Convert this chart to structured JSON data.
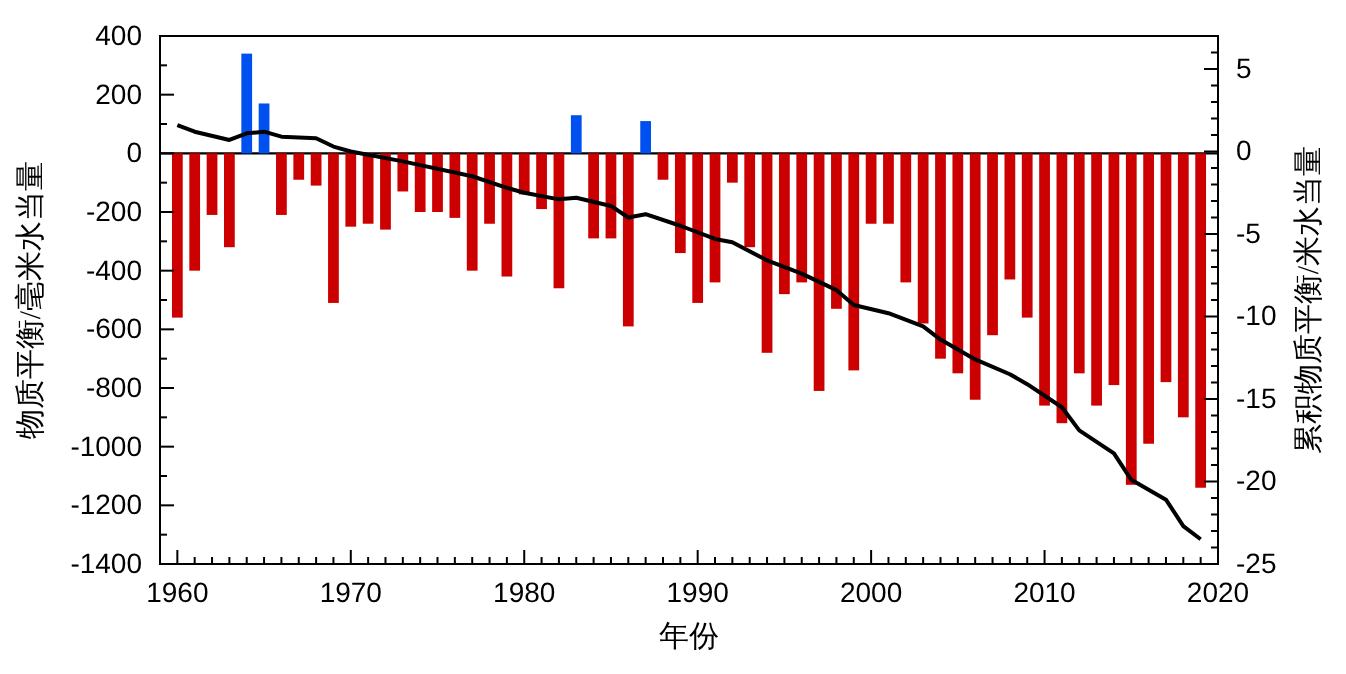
{
  "chart_data": {
    "type": "bar",
    "xlabel": "年份",
    "ylabel": "物质平衡/毫米水当量",
    "y2label": "累积物质平衡/米水当量",
    "x": [
      1960,
      1961,
      1962,
      1963,
      1964,
      1965,
      1966,
      1967,
      1968,
      1969,
      1970,
      1971,
      1972,
      1973,
      1974,
      1975,
      1976,
      1977,
      1978,
      1979,
      1980,
      1981,
      1982,
      1983,
      1984,
      1985,
      1986,
      1987,
      1988,
      1989,
      1990,
      1991,
      1992,
      1993,
      1994,
      1995,
      1996,
      1997,
      1998,
      1999,
      2000,
      2001,
      2002,
      2003,
      2004,
      2005,
      2006,
      2007,
      2008,
      2009,
      2010,
      2011,
      2012,
      2013,
      2014,
      2015,
      2016,
      2017,
      2018,
      2019
    ],
    "series": [
      {
        "values": [
          -560,
          -400,
          -210,
          -320,
          340,
          170,
          -210,
          -90,
          -110,
          -510,
          -250,
          -240,
          -260,
          -130,
          -200,
          -200,
          -220,
          -400,
          -240,
          -420,
          -140,
          -190,
          -460,
          130,
          -290,
          -290,
          -590,
          110,
          -90,
          -340,
          -510,
          -440,
          -100,
          -320,
          -680,
          -480,
          -440,
          -810,
          -530,
          -740,
          -240,
          -240,
          -440,
          -580,
          -700,
          -750,
          -840,
          -620,
          -430,
          -560,
          -860,
          -920,
          -750,
          -860,
          -790,
          -1130,
          -990,
          -780,
          -900,
          -1140
        ],
        "colors": [
          "#cc0000",
          "#cc0000",
          "#cc0000",
          "#cc0000",
          "#0050f0",
          "#0050f0",
          "#cc0000",
          "#cc0000",
          "#cc0000",
          "#cc0000",
          "#cc0000",
          "#cc0000",
          "#cc0000",
          "#cc0000",
          "#cc0000",
          "#cc0000",
          "#cc0000",
          "#cc0000",
          "#cc0000",
          "#cc0000",
          "#cc0000",
          "#cc0000",
          "#cc0000",
          "#0050f0",
          "#cc0000",
          "#cc0000",
          "#cc0000",
          "#0050f0",
          "#cc0000",
          "#cc0000",
          "#cc0000",
          "#cc0000",
          "#cc0000",
          "#cc0000",
          "#cc0000",
          "#cc0000",
          "#cc0000",
          "#cc0000",
          "#cc0000",
          "#cc0000",
          "#cc0000",
          "#cc0000",
          "#cc0000",
          "#cc0000",
          "#cc0000",
          "#cc0000",
          "#cc0000",
          "#cc0000",
          "#cc0000",
          "#cc0000",
          "#cc0000",
          "#cc0000",
          "#cc0000",
          "#cc0000",
          "#cc0000",
          "#cc0000",
          "#cc0000",
          "#cc0000",
          "#cc0000",
          "#cc0000"
        ]
      },
      {
        "type": "line",
        "axis": "y2",
        "color": "#000000",
        "x": [
          1960,
          1961,
          1963,
          1964,
          1965,
          1966,
          1968,
          1969,
          1970,
          1973,
          1977,
          1979,
          1980,
          1982,
          1983,
          1985,
          1986,
          1987,
          1989,
          1991,
          1992,
          1994,
          1996,
          1998,
          1999,
          2001,
          2003,
          2004,
          2006,
          2008,
          2009,
          2011,
          2012,
          2014,
          2015,
          2017,
          2018,
          2019
        ],
        "values": [
          1.6,
          1.2,
          0.7,
          1.1,
          1.2,
          0.9,
          0.8,
          0.3,
          0,
          -0.6,
          -1.5,
          -2.2,
          -2.5,
          -2.9,
          -2.8,
          -3.3,
          -4.0,
          -3.8,
          -4.5,
          -5.3,
          -5.5,
          -6.6,
          -7.4,
          -8.4,
          -9.3,
          -9.8,
          -10.6,
          -11.4,
          -12.6,
          -13.5,
          -14.1,
          -15.5,
          -16.9,
          -18.3,
          -19.9,
          -21.1,
          -22.7,
          -23.5
        ]
      }
    ],
    "xlim": [
      1959,
      2020
    ],
    "xticks": [
      1960,
      {
        "value": 1961,
        "label": null
      },
      {
        "value": 1962,
        "label": null
      },
      {
        "value": 1963,
        "label": null
      },
      {
        "value": 1964,
        "label": null
      },
      {
        "value": 1965,
        "label": null
      },
      {
        "value": 1966,
        "label": null
      },
      {
        "value": 1967,
        "label": null
      },
      {
        "value": 1968,
        "label": null
      },
      {
        "value": 1969,
        "label": null
      },
      1970,
      {
        "value": 1971,
        "label": null
      },
      {
        "value": 1972,
        "label": null
      },
      {
        "value": 1973,
        "label": null
      },
      {
        "value": 1974,
        "label": null
      },
      {
        "value": 1975,
        "label": null
      },
      {
        "value": 1976,
        "label": null
      },
      {
        "value": 1977,
        "label": null
      },
      {
        "value": 1978,
        "label": null
      },
      {
        "value": 1979,
        "label": null
      },
      1980,
      {
        "value": 1981,
        "label": null
      },
      {
        "value": 1982,
        "label": null
      },
      {
        "value": 1983,
        "label": null
      },
      {
        "value": 1984,
        "label": null
      },
      {
        "value": 1985,
        "label": null
      },
      {
        "value": 1986,
        "label": null
      },
      {
        "value": 1987,
        "label": null
      },
      {
        "value": 1988,
        "label": null
      },
      {
        "value": 1989,
        "label": null
      },
      1990,
      {
        "value": 1991,
        "label": null
      },
      {
        "value": 1992,
        "label": null
      },
      {
        "value": 1993,
        "label": null
      },
      {
        "value": 1994,
        "label": null
      },
      {
        "value": 1995,
        "label": null
      },
      {
        "value": 1996,
        "label": null
      },
      {
        "value": 1997,
        "label": null
      },
      {
        "value": 1998,
        "label": null
      },
      {
        "value": 1999,
        "label": null
      },
      2000,
      {
        "value": 2001,
        "label": null
      },
      {
        "value": 2002,
        "label": null
      },
      {
        "value": 2003,
        "label": null
      },
      {
        "value": 2004,
        "label": null
      },
      {
        "value": 2005,
        "label": null
      },
      {
        "value": 2006,
        "label": null
      },
      {
        "value": 2007,
        "label": null
      },
      {
        "value": 2008,
        "label": null
      },
      {
        "value": 2009,
        "label": null
      },
      2010,
      {
        "value": 2011,
        "label": null
      },
      {
        "value": 2012,
        "label": null
      },
      {
        "value": 2013,
        "label": null
      },
      {
        "value": 2014,
        "label": null
      },
      {
        "value": 2015,
        "label": null
      },
      {
        "value": 2016,
        "label": null
      },
      {
        "value": 2017,
        "label": null
      },
      {
        "value": 2018,
        "label": null
      },
      {
        "value": 2019,
        "label": null
      },
      2020
    ],
    "ylim": [
      -1400,
      400
    ],
    "yticks": [
      -1400,
      {
        "value": -1300,
        "label": null
      },
      -1200,
      {
        "value": -1100,
        "label": null
      },
      -1000,
      {
        "value": -900,
        "label": null
      },
      -800,
      {
        "value": -700,
        "label": null
      },
      -600,
      {
        "value": -500,
        "label": null
      },
      -400,
      {
        "value": -300,
        "label": null
      },
      -200,
      {
        "value": -100,
        "label": null
      },
      0,
      {
        "value": 100,
        "label": null
      },
      200,
      {
        "value": 300,
        "label": null
      },
      400
    ],
    "y2lim": [
      -25,
      7
    ],
    "y2ticks": [
      -25,
      {
        "value": -24,
        "label": null
      },
      {
        "value": -23,
        "label": null
      },
      {
        "value": -22,
        "label": null
      },
      {
        "value": -21,
        "label": null
      },
      -20,
      {
        "value": -19,
        "label": null
      },
      {
        "value": -18,
        "label": null
      },
      {
        "value": -17,
        "label": null
      },
      {
        "value": -16,
        "label": null
      },
      -15,
      {
        "value": -14,
        "label": null
      },
      {
        "value": -13,
        "label": null
      },
      {
        "value": -12,
        "label": null
      },
      {
        "value": -11,
        "label": null
      },
      -10,
      {
        "value": -9,
        "label": null
      },
      {
        "value": -8,
        "label": null
      },
      {
        "value": -7,
        "label": null
      },
      {
        "value": -6,
        "label": null
      },
      -5,
      {
        "value": -4,
        "label": null
      },
      {
        "value": -3,
        "label": null
      },
      {
        "value": -2,
        "label": null
      },
      {
        "value": -1,
        "label": null
      },
      0,
      {
        "value": 1,
        "label": null
      },
      {
        "value": 2,
        "label": null
      },
      {
        "value": 3,
        "label": null
      },
      {
        "value": 4,
        "label": null
      },
      5,
      {
        "value": 6,
        "label": null
      }
    ],
    "ref_lines": [
      {
        "axis": "y",
        "value": 0,
        "color": "#000000"
      }
    ],
    "grid": false
  }
}
